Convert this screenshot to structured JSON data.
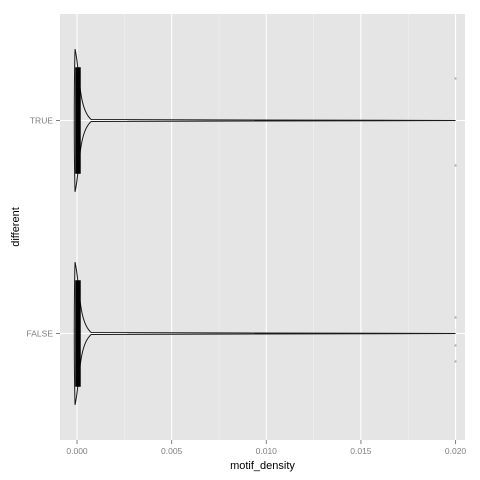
{
  "chart_data": {
    "type": "violin",
    "title": "",
    "xlabel": "motif_density",
    "ylabel": "different",
    "orientation": "horizontal",
    "xlim": [
      -0.0009,
      0.0205
    ],
    "x_ticks": [
      0.0,
      0.005,
      0.01,
      0.015,
      0.02
    ],
    "x_tick_labels": [
      "0.000",
      "0.005",
      "0.010",
      "0.015",
      "0.020"
    ],
    "categories": [
      "TRUE",
      "FALSE"
    ],
    "grid": true,
    "legend": "none",
    "series": [
      {
        "category": "TRUE",
        "dense_points_range": [
          0.0,
          0.0001
        ],
        "violin_tail_max": 0.02,
        "outliers": [
          0.02,
          0.02
        ]
      },
      {
        "category": "FALSE",
        "dense_points_range": [
          0.0,
          0.0001
        ],
        "violin_tail_max": 0.02,
        "outliers": [
          0.02,
          0.02,
          0.02
        ]
      }
    ],
    "colors": {
      "panel_bg": "#e5e5e5",
      "grid_major": "#ffffff",
      "grid_minor": "#f2f2f2",
      "violin_line": "#1a1a1a",
      "points": "#000000",
      "outliers": "#b3b3b3",
      "tick_label": "#7f7f7f"
    }
  }
}
